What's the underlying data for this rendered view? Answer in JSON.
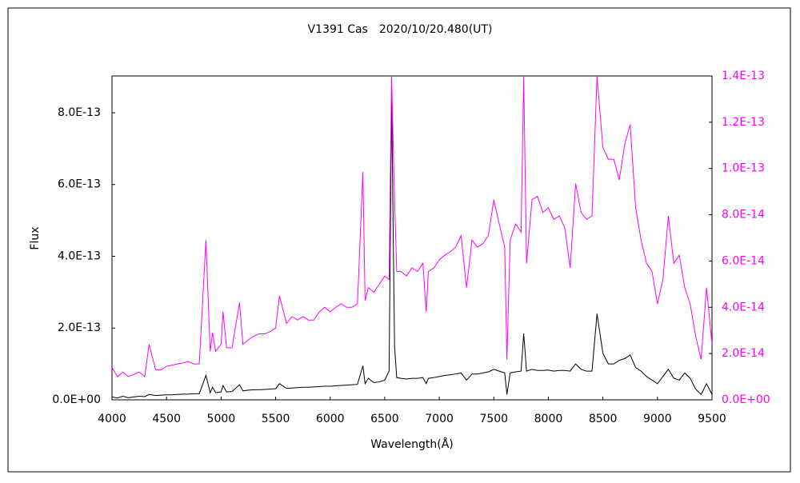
{
  "chart_data": {
    "type": "line",
    "title": "V1391 Cas　2020/10/20.480(UT)",
    "xlabel": "Wavelength(Å)",
    "ylabel": "Flux",
    "x": [
      4000,
      4050,
      4100,
      4150,
      4200,
      4250,
      4300,
      4340,
      4400,
      4450,
      4500,
      4550,
      4600,
      4650,
      4700,
      4750,
      4800,
      4861,
      4900,
      4922,
      4950,
      5000,
      5018,
      5050,
      5100,
      5169,
      5200,
      5250,
      5300,
      5350,
      5400,
      5450,
      5500,
      5535,
      5600,
      5650,
      5700,
      5750,
      5800,
      5850,
      5900,
      5950,
      6000,
      6050,
      6100,
      6150,
      6200,
      6250,
      6300,
      6320,
      6350,
      6400,
      6450,
      6500,
      6540,
      6563,
      6590,
      6610,
      6650,
      6700,
      6750,
      6800,
      6850,
      6880,
      6900,
      6950,
      7000,
      7050,
      7100,
      7150,
      7200,
      7250,
      7300,
      7350,
      7400,
      7450,
      7500,
      7550,
      7600,
      7620,
      7650,
      7700,
      7750,
      7774,
      7800,
      7850,
      7900,
      7950,
      8000,
      8050,
      8100,
      8150,
      8200,
      8250,
      8300,
      8350,
      8400,
      8446,
      8500,
      8550,
      8600,
      8650,
      8700,
      8750,
      8800,
      8850,
      8900,
      8950,
      9000,
      9050,
      9100,
      9150,
      9200,
      9250,
      9300,
      9350,
      9400,
      9450,
      9500
    ],
    "series": [
      {
        "color": "#000000",
        "values": [
          8e-15,
          5e-15,
          1e-14,
          6e-15,
          8e-15,
          1e-14,
          9e-15,
          1.5e-14,
          1.2e-14,
          1.3e-14,
          1.4e-14,
          1.4e-14,
          1.5e-14,
          1.6e-14,
          1.6e-14,
          1.7e-14,
          1.7e-14,
          6.8e-14,
          2e-14,
          3.5e-14,
          2e-14,
          2.2e-14,
          4e-14,
          2.2e-14,
          2.3e-14,
          4.2e-14,
          2.5e-14,
          2.7e-14,
          2.8e-14,
          2.8e-14,
          2.9e-14,
          3e-14,
          3.1e-14,
          4.5e-14,
          3.2e-14,
          3.3e-14,
          3.4e-14,
          3.5e-14,
          3.5e-14,
          3.6e-14,
          3.7e-14,
          3.8e-14,
          3.8e-14,
          3.9e-14,
          4e-14,
          4.1e-14,
          4.2e-14,
          4.3e-14,
          9.5e-14,
          4.5e-14,
          6e-14,
          4.8e-14,
          5e-14,
          5.5e-14,
          8e-14,
          8.45e-13,
          1.5e-13,
          6.2e-14,
          6e-14,
          5.8e-14,
          6e-14,
          6e-14,
          6.2e-14,
          4.5e-14,
          6e-14,
          6.2e-14,
          6.5e-14,
          6.8e-14,
          7e-14,
          7.2e-14,
          7.5e-14,
          5.5e-14,
          7.2e-14,
          7.2e-14,
          7.5e-14,
          7.8e-14,
          8.5e-14,
          8e-14,
          7.5e-14,
          1.5e-14,
          7.5e-14,
          7.8e-14,
          8e-14,
          1.85e-13,
          8e-14,
          8.5e-14,
          8.2e-14,
          8.2e-14,
          8.3e-14,
          8e-14,
          8.2e-14,
          8.2e-14,
          8e-14,
          1e-13,
          8.5e-14,
          8e-14,
          8e-14,
          2.4e-13,
          1.3e-13,
          1e-13,
          1e-13,
          1.1e-13,
          1.15e-13,
          1.25e-13,
          9e-14,
          8e-14,
          6.5e-14,
          5.5e-14,
          4.5e-14,
          6.5e-14,
          8.5e-14,
          6e-14,
          5.5e-14,
          7.5e-14,
          6e-14,
          3e-14,
          1.5e-14,
          4.5e-14,
          1.5e-14
        ]
      },
      {
        "color": "#ff00ff",
        "axis": "y2",
        "values": [
          1.4e-14,
          1e-14,
          1.2e-14,
          1e-14,
          1.1e-14,
          1.2e-14,
          1e-14,
          2.4e-14,
          1.3e-14,
          1.3e-14,
          1.45e-14,
          1.5e-14,
          1.55e-14,
          1.6e-14,
          1.65e-14,
          1.55e-14,
          1.55e-14,
          6.9e-14,
          2.1e-14,
          2.9e-14,
          2.1e-14,
          2.4e-14,
          3.8e-14,
          2.25e-14,
          2.25e-14,
          4.2e-14,
          2.4e-14,
          2.6e-14,
          2.75e-14,
          2.85e-14,
          2.85e-14,
          2.95e-14,
          3.1e-14,
          4.5e-14,
          3.3e-14,
          3.6e-14,
          3.45e-14,
          3.6e-14,
          3.45e-14,
          3.45e-14,
          3.8e-14,
          4e-14,
          3.8e-14,
          4e-14,
          4.15e-14,
          4e-14,
          4e-14,
          4.15e-14,
          9.85e-14,
          4.3e-14,
          4.85e-14,
          4.65e-14,
          5e-14,
          5.35e-14,
          5.2e-14,
          1.4e-13,
          8.65e-14,
          5.55e-14,
          5.55e-14,
          5.35e-14,
          5.7e-14,
          5.55e-14,
          5.9e-14,
          3.8e-14,
          5.55e-14,
          5.7e-14,
          6.05e-14,
          6.25e-14,
          6.4e-14,
          6.6e-14,
          7.1e-14,
          4.85e-14,
          6.9e-14,
          6.6e-14,
          6.75e-14,
          7.1e-14,
          8.65e-14,
          7.6e-14,
          6.6e-14,
          1.75e-14,
          6.9e-14,
          7.6e-14,
          7.25e-14,
          1.4e-13,
          5.9e-14,
          8.65e-14,
          8.8e-14,
          8.1e-14,
          8.3e-14,
          7.8e-14,
          7.95e-14,
          7.45e-14,
          5.7e-14,
          9.35e-14,
          8.1e-14,
          7.8e-14,
          7.95e-14,
          1.4e-13,
          1.09e-13,
          1.04e-13,
          1.04e-13,
          9.5e-14,
          1.105e-13,
          1.19e-13,
          8.3e-14,
          6.9e-14,
          5.9e-14,
          5.55e-14,
          4.15e-14,
          5.2e-14,
          7.95e-14,
          5.9e-14,
          6.25e-14,
          4.85e-14,
          4.15e-14,
          2.75e-14,
          1.75e-14,
          4.85e-14,
          2.4e-14
        ]
      }
    ],
    "xlim": [
      4000,
      9500
    ],
    "xticks": [
      4000,
      4500,
      5000,
      5500,
      6000,
      6500,
      7000,
      7500,
      8000,
      8500,
      9000,
      9500
    ],
    "ylim": [
      0,
      9.025e-13
    ],
    "yticks": [
      {
        "value": 0,
        "label": "0.0E+00"
      },
      {
        "value": 2e-13,
        "label": "2.0E-13"
      },
      {
        "value": 4e-13,
        "label": "4.0E-13"
      },
      {
        "value": 6e-13,
        "label": "6.0E-13"
      },
      {
        "value": 8e-13,
        "label": "8.0E-13"
      }
    ],
    "y2lim": [
      0,
      1.4e-13
    ],
    "y2ticks": [
      {
        "value": 0,
        "label": "0.0E+00"
      },
      {
        "value": 2e-14,
        "label": "2.0E-14"
      },
      {
        "value": 4e-14,
        "label": "4.0E-14"
      },
      {
        "value": 6e-14,
        "label": "6.0E-14"
      },
      {
        "value": 8e-14,
        "label": "8.0E-14"
      },
      {
        "value": 1e-13,
        "label": "1.0E-13"
      },
      {
        "value": 1.2e-13,
        "label": "1.2E-13"
      },
      {
        "value": 1.4e-13,
        "label": "1.4E-13"
      }
    ],
    "y2_tick_color": "#ff00ff"
  }
}
